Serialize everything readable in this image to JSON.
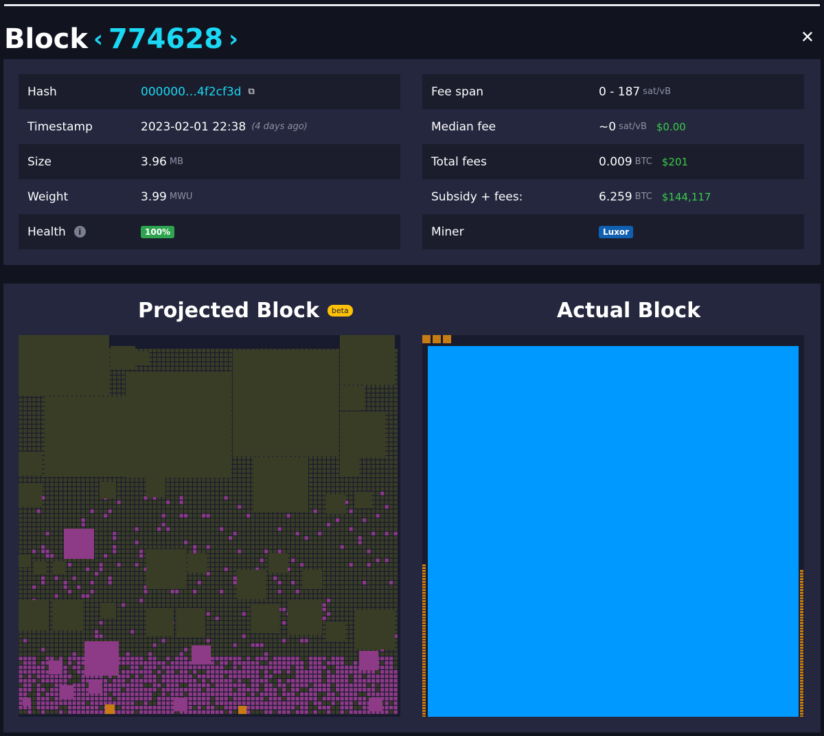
{
  "header": {
    "title": "Block",
    "block_height": "774628",
    "prev_icon": "chevron-left-icon",
    "next_icon": "chevron-right-icon",
    "close_icon": "close-icon"
  },
  "details_left": [
    {
      "label": "Hash",
      "value": "000000…4f2cf3d"
    },
    {
      "label": "Timestamp",
      "value": "2023-02-01 22:38",
      "note": "(4 days ago)"
    },
    {
      "label": "Size",
      "value": "3.96",
      "unit": "MB"
    },
    {
      "label": "Weight",
      "value": "3.99",
      "unit": "MWU"
    },
    {
      "label": "Health",
      "value": "100%"
    }
  ],
  "details_right": [
    {
      "label": "Fee span",
      "value": "0 - 187",
      "unit": "sat/vB"
    },
    {
      "label": "Median fee",
      "value": "~0",
      "unit": "sat/vB",
      "usd": "$0.00"
    },
    {
      "label": "Total fees",
      "value": "0.009",
      "unit": "BTC",
      "usd": "$201"
    },
    {
      "label": "Subsidy + fees:",
      "value": "6.259",
      "unit": "BTC",
      "usd": "$144,117"
    },
    {
      "label": "Miner",
      "value": "Luxor"
    }
  ],
  "projected": {
    "title": "Projected Block",
    "badge": "beta"
  },
  "actual": {
    "title": "Actual Block"
  },
  "colors": {
    "accent": "#1bd8f4",
    "green_usd": "#3bcc49",
    "tx_low_fee": "#3a3d26",
    "tx_mid_fee": "#8d3a87",
    "tx_actual_large": "#0099ff",
    "tx_orange": "#c77b14",
    "panel_bg": "#24273e"
  }
}
